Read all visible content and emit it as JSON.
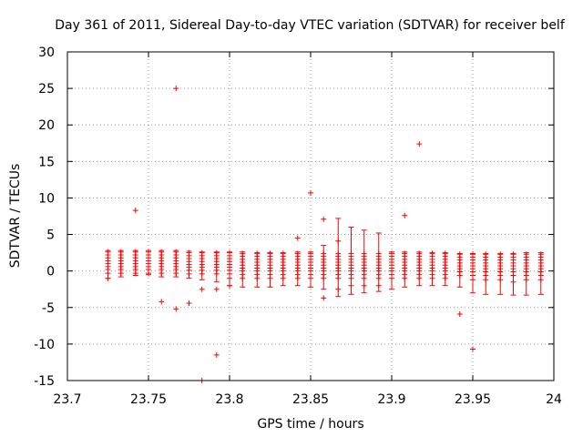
{
  "chart_data": {
    "type": "scatter",
    "title": "Day 361 of 2011, Sidereal Day-to-day VTEC variation (SDTVAR) for receiver belf",
    "xlabel": "GPS time / hours",
    "ylabel": "SDTVAR / TECUs",
    "xlim": [
      23.7,
      24
    ],
    "ylim": [
      -15,
      30
    ],
    "x_ticks": [
      23.7,
      23.75,
      23.8,
      23.85,
      23.9,
      23.95,
      24
    ],
    "x_tick_labels": [
      "23.7",
      "23.75",
      "23.8",
      "23.85",
      "23.9",
      "23.95",
      "24"
    ],
    "y_ticks": [
      -15,
      -10,
      -5,
      0,
      5,
      10,
      15,
      20,
      25,
      30
    ],
    "y_tick_labels": [
      "-15",
      "-10",
      "-5",
      "0",
      "5",
      "10",
      "15",
      "20",
      "25",
      "30"
    ],
    "grid": true,
    "point_color": "#ff0000",
    "error_bar_color": "#ff0000",
    "series": [
      {
        "name": "SDTVAR",
        "marker": "plus",
        "x": [
          23.725,
          23.733,
          23.742,
          23.75,
          23.758,
          23.767,
          23.775,
          23.783,
          23.792,
          23.8,
          23.808,
          23.817,
          23.825,
          23.833,
          23.842,
          23.85,
          23.858,
          23.867,
          23.875,
          23.883,
          23.892,
          23.9,
          23.908,
          23.917,
          23.925,
          23.933,
          23.942,
          23.95,
          23.958,
          23.967,
          23.975,
          23.983,
          23.992
        ],
        "y_groups": [
          [
            2.6,
            2.2,
            1.8,
            1.4,
            1.0,
            0.6,
            0.2,
            -0.3,
            -1.0
          ],
          [
            2.6,
            2.2,
            1.8,
            1.4,
            1.0,
            0.6,
            0.2,
            -0.3
          ],
          [
            8.3,
            2.6,
            2.2,
            1.8,
            1.4,
            1.0,
            0.6,
            0.2,
            -0.3
          ],
          [
            2.6,
            2.2,
            1.8,
            1.4,
            1.0,
            0.6,
            0.2,
            -0.3
          ],
          [
            2.6,
            2.2,
            1.8,
            1.4,
            1.0,
            0.6,
            0.2,
            -0.3,
            -4.2
          ],
          [
            25.0,
            2.6,
            2.2,
            1.8,
            1.4,
            1.0,
            0.6,
            0.2,
            -0.3,
            -5.2
          ],
          [
            2.5,
            2.1,
            1.7,
            1.3,
            0.9,
            0.5,
            0.1,
            -0.4,
            -4.4
          ],
          [
            2.5,
            2.1,
            1.7,
            1.3,
            0.9,
            0.5,
            0.1,
            -0.4,
            -2.5,
            -15.0
          ],
          [
            2.5,
            2.1,
            1.7,
            1.3,
            0.9,
            0.5,
            0.1,
            -0.4,
            -2.5,
            -11.5
          ],
          [
            2.5,
            2.1,
            1.7,
            1.3,
            0.9,
            0.5,
            0.1,
            -0.4,
            -1.0,
            -2.0
          ],
          [
            2.4,
            2.0,
            1.6,
            1.2,
            0.8,
            0.4,
            0.0,
            -0.5,
            -1.0
          ],
          [
            2.4,
            2.0,
            1.6,
            1.2,
            0.8,
            0.4,
            0.0,
            -0.5,
            -1.0
          ],
          [
            2.4,
            2.0,
            1.6,
            1.2,
            0.8,
            0.4,
            0.0,
            -0.5,
            -1.0
          ],
          [
            2.4,
            2.0,
            1.6,
            1.2,
            0.8,
            0.4,
            0.0,
            -0.5,
            -1.0
          ],
          [
            4.5,
            2.4,
            2.0,
            1.6,
            1.2,
            0.8,
            0.4,
            0.0,
            -0.5,
            -1.0
          ],
          [
            10.7,
            2.4,
            2.0,
            1.6,
            1.2,
            0.8,
            0.4,
            0.0,
            -0.5,
            -1.0
          ],
          [
            7.1,
            2.4,
            2.0,
            1.6,
            1.2,
            0.8,
            0.4,
            0.0,
            -0.5,
            -1.0,
            -3.7
          ],
          [
            4.1,
            2.4,
            2.0,
            1.6,
            1.2,
            0.8,
            0.4,
            0.0,
            -0.5,
            -1.0,
            -2.5
          ],
          [
            2.4,
            2.0,
            1.6,
            1.2,
            0.8,
            0.4,
            0.0,
            -0.5,
            -1.0,
            -2.0
          ],
          [
            2.4,
            2.0,
            1.6,
            1.2,
            0.8,
            0.4,
            0.0,
            -0.5,
            -1.0,
            -2.0
          ],
          [
            2.4,
            2.0,
            1.6,
            1.2,
            0.8,
            0.4,
            0.0,
            -0.5,
            -1.0,
            -2.0
          ],
          [
            2.4,
            2.0,
            1.6,
            1.2,
            0.8,
            0.4,
            0.0,
            -0.5,
            -1.0
          ],
          [
            7.6,
            2.4,
            2.0,
            1.6,
            1.2,
            0.8,
            0.4,
            0.0,
            -0.5,
            -1.0
          ],
          [
            17.4,
            2.4,
            2.0,
            1.6,
            1.2,
            0.8,
            0.4,
            0.0,
            -0.5,
            -1.0
          ],
          [
            2.4,
            2.0,
            1.6,
            1.2,
            0.8,
            0.4,
            0.0,
            -0.5,
            -1.0
          ],
          [
            2.4,
            2.0,
            1.6,
            1.2,
            0.8,
            0.4,
            0.0,
            -0.5,
            -1.0
          ],
          [
            2.3,
            1.9,
            1.5,
            1.1,
            0.7,
            0.3,
            -0.1,
            -0.6,
            -5.9
          ],
          [
            2.3,
            1.9,
            1.5,
            1.1,
            0.7,
            0.3,
            -0.1,
            -0.6,
            -1.2,
            -10.7
          ],
          [
            2.3,
            1.9,
            1.5,
            1.1,
            0.7,
            0.3,
            -0.1,
            -0.6,
            -1.2
          ],
          [
            2.3,
            1.9,
            1.5,
            1.1,
            0.7,
            0.3,
            -0.1,
            -0.6,
            -1.2
          ],
          [
            2.3,
            1.9,
            1.5,
            1.1,
            0.7,
            0.3,
            -0.1,
            -0.6,
            -1.5
          ],
          [
            2.3,
            1.9,
            1.5,
            1.1,
            0.7,
            0.3,
            -0.1,
            -0.6,
            -1.2
          ],
          [
            2.3,
            1.9,
            1.5,
            1.1,
            0.7,
            0.3,
            -0.1,
            -0.6,
            -1.2
          ]
        ],
        "error_low": [
          -1.0,
          -0.8,
          -0.6,
          -0.5,
          -0.8,
          -0.8,
          -1.0,
          -1.2,
          -1.5,
          -2.0,
          -2.2,
          -2.2,
          -2.2,
          -2.0,
          -2.0,
          -2.2,
          -2.5,
          -3.5,
          -3.2,
          -3.0,
          -2.8,
          -2.5,
          -2.2,
          -2.0,
          -2.0,
          -2.0,
          -2.2,
          -3.0,
          -3.2,
          -3.2,
          -3.3,
          -3.3,
          -3.2
        ],
        "error_high": [
          2.8,
          2.8,
          2.8,
          2.8,
          2.8,
          2.8,
          2.7,
          2.6,
          2.6,
          2.6,
          2.6,
          2.5,
          2.5,
          2.5,
          2.6,
          2.6,
          3.5,
          7.2,
          6.0,
          5.6,
          5.2,
          2.6,
          2.6,
          2.6,
          2.5,
          2.5,
          2.4,
          2.4,
          2.4,
          2.4,
          2.4,
          2.5,
          2.5
        ]
      }
    ]
  }
}
